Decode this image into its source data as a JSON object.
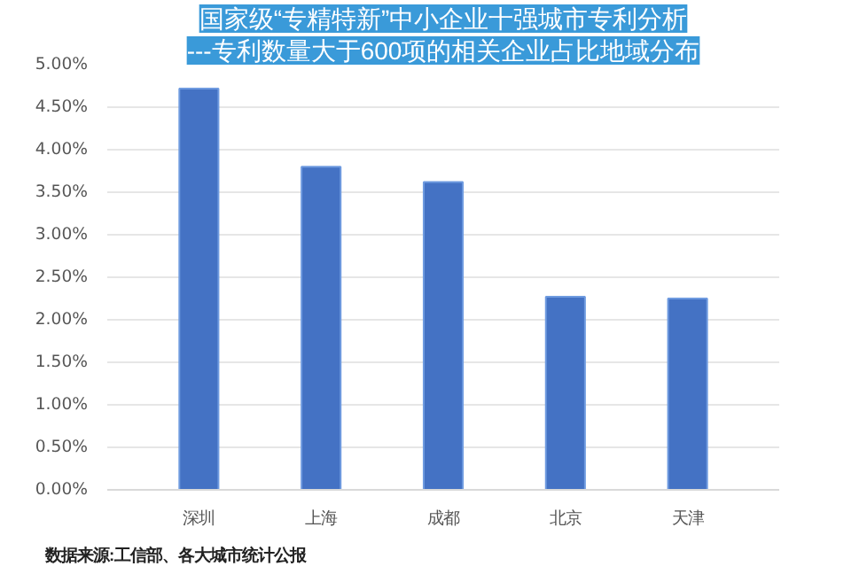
{
  "chart_data": {
    "type": "bar",
    "title": "国家级“专精特新”中小企业十强城市专利分析",
    "subtitle": "---专利数量大于600项的相关企业占比地域分布",
    "categories": [
      "深圳",
      "上海",
      "成都",
      "北京",
      "天津"
    ],
    "values": [
      4.72,
      3.8,
      3.62,
      2.27,
      2.25
    ],
    "color": "#4472c4",
    "ylim": [
      0,
      5
    ],
    "yticks": [
      {
        "value": 0,
        "label": "0.00%"
      },
      {
        "value": 0.5,
        "label": "0.50%"
      },
      {
        "value": 1,
        "label": "1.00%"
      },
      {
        "value": 1.5,
        "label": "1.50%"
      },
      {
        "value": 2,
        "label": "2.00%"
      },
      {
        "value": 2.5,
        "label": "2.50%"
      },
      {
        "value": 3,
        "label": "3.00%"
      },
      {
        "value": 3.5,
        "label": "3.50%"
      },
      {
        "value": 4,
        "label": "4.00%"
      },
      {
        "value": 4.5,
        "label": "4.50%"
      },
      {
        "value": 5,
        "label": "5.00%"
      }
    ],
    "grid": "y",
    "annotations": [
      "数据来源:工信部、各大城市统计公报"
    ]
  }
}
